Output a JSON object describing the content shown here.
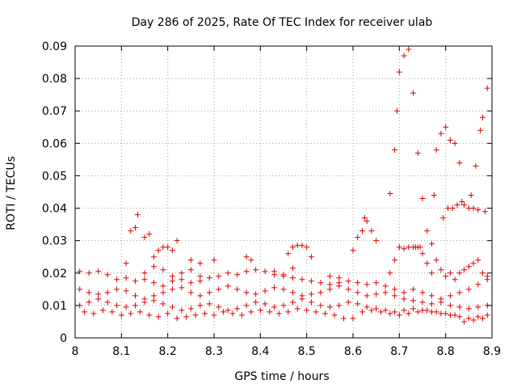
{
  "chart_data": {
    "type": "scatter",
    "title": "Day 286 of 2025, Rate Of TEC Index for receiver ulab",
    "xlabel": "GPS time / hours",
    "ylabel": "ROTI / TECUs",
    "xlim": [
      8.0,
      8.9
    ],
    "ylim": [
      0.0,
      0.09
    ],
    "xticks": [
      "8",
      "8.1",
      "8.2",
      "8.3",
      "8.4",
      "8.5",
      "8.6",
      "8.7",
      "8.8",
      "8.9"
    ],
    "yticks": [
      "0",
      "0.01",
      "0.02",
      "0.03",
      "0.04",
      "0.05",
      "0.06",
      "0.07",
      "0.08",
      "0.09"
    ],
    "grid": true,
    "marker": "+",
    "color": "#dd0000",
    "series": [
      {
        "points": [
          [
            8.01,
            0.0205
          ],
          [
            8.03,
            0.02
          ],
          [
            8.05,
            0.0205
          ],
          [
            8.07,
            0.0195
          ],
          [
            8.09,
            0.018
          ],
          [
            8.11,
            0.0185
          ],
          [
            8.13,
            0.0175
          ],
          [
            8.15,
            0.018
          ],
          [
            8.17,
            0.017
          ],
          [
            8.19,
            0.016
          ],
          [
            8.21,
            0.0175
          ],
          [
            8.23,
            0.018
          ],
          [
            8.25,
            0.017
          ],
          [
            8.27,
            0.0175
          ],
          [
            8.29,
            0.0185
          ],
          [
            8.31,
            0.019
          ],
          [
            8.33,
            0.02
          ],
          [
            8.35,
            0.0195
          ],
          [
            8.37,
            0.0205
          ],
          [
            8.39,
            0.021
          ],
          [
            8.41,
            0.0205
          ],
          [
            8.43,
            0.0195
          ],
          [
            8.45,
            0.019
          ],
          [
            8.47,
            0.0185
          ],
          [
            8.49,
            0.018
          ],
          [
            8.51,
            0.0175
          ],
          [
            8.53,
            0.017
          ],
          [
            8.55,
            0.0165
          ],
          [
            8.57,
            0.017
          ],
          [
            8.59,
            0.0175
          ],
          [
            8.61,
            0.017
          ],
          [
            8.63,
            0.0165
          ],
          [
            8.65,
            0.017
          ],
          [
            8.67,
            0.016
          ],
          [
            8.69,
            0.015
          ],
          [
            8.71,
            0.014
          ],
          [
            8.73,
            0.015
          ],
          [
            8.75,
            0.014
          ],
          [
            8.77,
            0.013
          ],
          [
            8.79,
            0.012
          ],
          [
            8.81,
            0.013
          ],
          [
            8.83,
            0.014
          ],
          [
            8.85,
            0.015
          ],
          [
            8.87,
            0.0165
          ],
          [
            8.89,
            0.018
          ]
        ]
      },
      {
        "points": [
          [
            8.01,
            0.015
          ],
          [
            8.03,
            0.014
          ],
          [
            8.05,
            0.0135
          ],
          [
            8.07,
            0.014
          ],
          [
            8.09,
            0.015
          ],
          [
            8.11,
            0.0145
          ],
          [
            8.13,
            0.013
          ],
          [
            8.15,
            0.012
          ],
          [
            8.17,
            0.013
          ],
          [
            8.19,
            0.014
          ],
          [
            8.21,
            0.015
          ],
          [
            8.23,
            0.0155
          ],
          [
            8.25,
            0.014
          ],
          [
            8.27,
            0.013
          ],
          [
            8.29,
            0.014
          ],
          [
            8.31,
            0.015
          ],
          [
            8.33,
            0.016
          ],
          [
            8.35,
            0.015
          ],
          [
            8.37,
            0.014
          ],
          [
            8.39,
            0.0135
          ],
          [
            8.41,
            0.0145
          ],
          [
            8.43,
            0.0155
          ],
          [
            8.45,
            0.015
          ],
          [
            8.47,
            0.014
          ],
          [
            8.49,
            0.013
          ],
          [
            8.51,
            0.0135
          ],
          [
            8.53,
            0.014
          ],
          [
            8.55,
            0.015
          ],
          [
            8.57,
            0.016
          ],
          [
            8.59,
            0.015
          ],
          [
            8.61,
            0.014
          ],
          [
            8.63,
            0.013
          ],
          [
            8.65,
            0.0135
          ],
          [
            8.67,
            0.014
          ],
          [
            8.69,
            0.013
          ],
          [
            8.71,
            0.012
          ],
          [
            8.73,
            0.0115
          ],
          [
            8.75,
            0.011
          ],
          [
            8.77,
            0.0105
          ],
          [
            8.79,
            0.011
          ],
          [
            8.81,
            0.01
          ],
          [
            8.83,
            0.0095
          ],
          [
            8.85,
            0.009
          ],
          [
            8.87,
            0.0095
          ],
          [
            8.89,
            0.01
          ]
        ]
      },
      {
        "points": [
          [
            8.01,
            0.01
          ],
          [
            8.03,
            0.011
          ],
          [
            8.05,
            0.012
          ],
          [
            8.07,
            0.011
          ],
          [
            8.09,
            0.01
          ],
          [
            8.11,
            0.0095
          ],
          [
            8.13,
            0.01
          ],
          [
            8.15,
            0.011
          ],
          [
            8.17,
            0.0115
          ],
          [
            8.19,
            0.0105
          ],
          [
            8.21,
            0.0095
          ],
          [
            8.23,
            0.0085
          ],
          [
            8.25,
            0.009
          ],
          [
            8.27,
            0.01
          ],
          [
            8.29,
            0.0105
          ],
          [
            8.31,
            0.0095
          ],
          [
            8.33,
            0.0085
          ],
          [
            8.35,
            0.009
          ],
          [
            8.37,
            0.01
          ],
          [
            8.39,
            0.011
          ],
          [
            8.41,
            0.0105
          ],
          [
            8.43,
            0.0095
          ],
          [
            8.45,
            0.01
          ],
          [
            8.47,
            0.011
          ],
          [
            8.49,
            0.012
          ],
          [
            8.51,
            0.011
          ],
          [
            8.53,
            0.01
          ],
          [
            8.55,
            0.0095
          ],
          [
            8.57,
            0.01
          ],
          [
            8.59,
            0.011
          ],
          [
            8.61,
            0.0105
          ],
          [
            8.63,
            0.0095
          ],
          [
            8.65,
            0.009
          ],
          [
            8.67,
            0.0085
          ],
          [
            8.69,
            0.008
          ],
          [
            8.71,
            0.0085
          ],
          [
            8.73,
            0.009
          ],
          [
            8.75,
            0.0085
          ],
          [
            8.77,
            0.008
          ],
          [
            8.79,
            0.0075
          ],
          [
            8.81,
            0.007
          ],
          [
            8.83,
            0.0065
          ],
          [
            8.85,
            0.006
          ],
          [
            8.87,
            0.0065
          ],
          [
            8.89,
            0.007
          ]
        ]
      },
      {
        "points": [
          [
            8.02,
            0.008
          ],
          [
            8.04,
            0.0075
          ],
          [
            8.06,
            0.0085
          ],
          [
            8.08,
            0.008
          ],
          [
            8.1,
            0.007
          ],
          [
            8.12,
            0.0075
          ],
          [
            8.14,
            0.008
          ],
          [
            8.16,
            0.007
          ],
          [
            8.18,
            0.0065
          ],
          [
            8.2,
            0.0075
          ],
          [
            8.22,
            0.006
          ],
          [
            8.24,
            0.0065
          ],
          [
            8.26,
            0.007
          ],
          [
            8.28,
            0.0075
          ],
          [
            8.3,
            0.007
          ],
          [
            8.32,
            0.008
          ],
          [
            8.34,
            0.0075
          ],
          [
            8.36,
            0.007
          ],
          [
            8.38,
            0.008
          ],
          [
            8.4,
            0.0085
          ],
          [
            8.42,
            0.008
          ],
          [
            8.44,
            0.0075
          ],
          [
            8.46,
            0.008
          ],
          [
            8.48,
            0.009
          ],
          [
            8.5,
            0.0085
          ],
          [
            8.52,
            0.008
          ],
          [
            8.54,
            0.0075
          ],
          [
            8.56,
            0.007
          ],
          [
            8.58,
            0.006
          ],
          [
            8.6,
            0.006
          ],
          [
            8.62,
            0.008
          ],
          [
            8.64,
            0.0085
          ],
          [
            8.66,
            0.008
          ],
          [
            8.68,
            0.0075
          ],
          [
            8.7,
            0.007
          ],
          [
            8.72,
            0.0075
          ],
          [
            8.74,
            0.008
          ],
          [
            8.76,
            0.0085
          ],
          [
            8.78,
            0.008
          ],
          [
            8.8,
            0.0075
          ],
          [
            8.82,
            0.007
          ],
          [
            8.84,
            0.005
          ],
          [
            8.86,
            0.0055
          ],
          [
            8.88,
            0.006
          ]
        ]
      },
      {
        "points": [
          [
            8.11,
            0.023
          ],
          [
            8.12,
            0.033
          ],
          [
            8.13,
            0.034
          ],
          [
            8.135,
            0.038
          ],
          [
            8.15,
            0.031
          ],
          [
            8.16,
            0.032
          ],
          [
            8.17,
            0.025
          ],
          [
            8.18,
            0.027
          ],
          [
            8.19,
            0.028
          ],
          [
            8.2,
            0.028
          ],
          [
            8.21,
            0.027
          ],
          [
            8.22,
            0.03
          ],
          [
            8.25,
            0.024
          ],
          [
            8.27,
            0.023
          ],
          [
            8.3,
            0.024
          ],
          [
            8.37,
            0.025
          ],
          [
            8.38,
            0.024
          ],
          [
            8.46,
            0.026
          ],
          [
            8.47,
            0.028
          ],
          [
            8.48,
            0.0285
          ],
          [
            8.49,
            0.0285
          ],
          [
            8.5,
            0.028
          ],
          [
            8.51,
            0.025
          ],
          [
            8.6,
            0.027
          ],
          [
            8.61,
            0.031
          ],
          [
            8.62,
            0.033
          ],
          [
            8.625,
            0.037
          ],
          [
            8.63,
            0.036
          ],
          [
            8.64,
            0.033
          ],
          [
            8.65,
            0.03
          ],
          [
            8.68,
            0.0445
          ],
          [
            8.69,
            0.058
          ],
          [
            8.695,
            0.07
          ],
          [
            8.7,
            0.082
          ],
          [
            8.71,
            0.087
          ],
          [
            8.72,
            0.089
          ],
          [
            8.73,
            0.0755
          ],
          [
            8.735,
            0.028
          ],
          [
            8.74,
            0.057
          ],
          [
            8.745,
            0.028
          ],
          [
            8.75,
            0.043
          ],
          [
            8.76,
            0.033
          ],
          [
            8.77,
            0.029
          ],
          [
            8.775,
            0.044
          ],
          [
            8.78,
            0.058
          ],
          [
            8.79,
            0.063
          ],
          [
            8.795,
            0.037
          ],
          [
            8.8,
            0.065
          ],
          [
            8.805,
            0.04
          ],
          [
            8.81,
            0.061
          ],
          [
            8.815,
            0.04
          ],
          [
            8.82,
            0.06
          ],
          [
            8.825,
            0.041
          ],
          [
            8.83,
            0.054
          ],
          [
            8.835,
            0.042
          ],
          [
            8.84,
            0.041
          ],
          [
            8.85,
            0.04
          ],
          [
            8.855,
            0.044
          ],
          [
            8.86,
            0.04
          ],
          [
            8.865,
            0.053
          ],
          [
            8.87,
            0.0395
          ],
          [
            8.875,
            0.064
          ],
          [
            8.88,
            0.068
          ],
          [
            8.885,
            0.039
          ],
          [
            8.89,
            0.077
          ]
        ]
      },
      {
        "points": [
          [
            8.68,
            0.02
          ],
          [
            8.69,
            0.024
          ],
          [
            8.7,
            0.028
          ],
          [
            8.71,
            0.0275
          ],
          [
            8.72,
            0.028
          ],
          [
            8.73,
            0.028
          ],
          [
            8.74,
            0.028
          ],
          [
            8.75,
            0.026
          ],
          [
            8.76,
            0.023
          ],
          [
            8.77,
            0.02
          ],
          [
            8.78,
            0.024
          ],
          [
            8.79,
            0.021
          ],
          [
            8.8,
            0.019
          ],
          [
            8.81,
            0.02
          ],
          [
            8.82,
            0.018
          ],
          [
            8.83,
            0.02
          ],
          [
            8.84,
            0.021
          ],
          [
            8.85,
            0.022
          ],
          [
            8.86,
            0.023
          ],
          [
            8.87,
            0.024
          ],
          [
            8.88,
            0.02
          ],
          [
            8.89,
            0.019
          ],
          [
            8.15,
            0.02
          ],
          [
            8.17,
            0.022
          ],
          [
            8.19,
            0.021
          ],
          [
            8.21,
            0.019
          ],
          [
            8.23,
            0.02
          ],
          [
            8.25,
            0.021
          ],
          [
            8.27,
            0.019
          ],
          [
            8.43,
            0.0205
          ],
          [
            8.45,
            0.0195
          ],
          [
            8.47,
            0.0215
          ],
          [
            8.55,
            0.019
          ],
          [
            8.57,
            0.0185
          ]
        ]
      }
    ]
  }
}
